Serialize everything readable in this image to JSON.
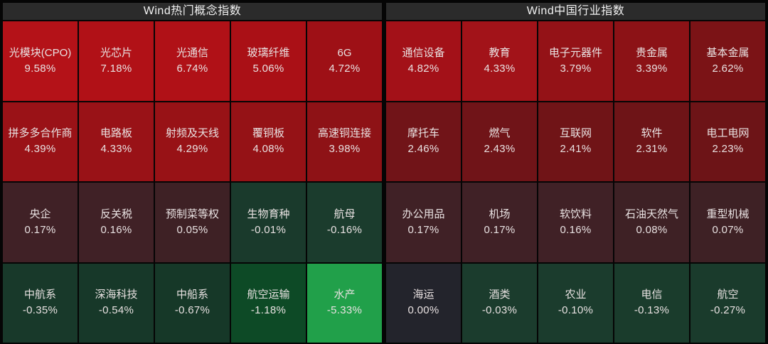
{
  "colors": {
    "page_background": "#050505",
    "header_background": "#2b2b2b",
    "header_text": "#f2f2f2",
    "tile_text": "#e9e2e2",
    "gain_strong": "#b41218",
    "loss_strong": "#21a04a",
    "flat": "#23242c"
  },
  "panels": [
    {
      "title": "Wind热门概念指数",
      "tiles": [
        {
          "name": "光模块(CPO)",
          "change": "9.58%",
          "color": "#b41218"
        },
        {
          "name": "光芯片",
          "change": "7.18%",
          "color": "#b11117"
        },
        {
          "name": "光通信",
          "change": "6.74%",
          "color": "#b01117"
        },
        {
          "name": "玻璃纤维",
          "change": "5.06%",
          "color": "#aa1016"
        },
        {
          "name": "6G",
          "change": "4.72%",
          "color": "#9e1016"
        },
        {
          "name": "拼多多合作商",
          "change": "4.39%",
          "color": "#9a1217"
        },
        {
          "name": "电路板",
          "change": "4.33%",
          "color": "#991217"
        },
        {
          "name": "射频及天线",
          "change": "4.29%",
          "color": "#981216"
        },
        {
          "name": "覆铜板",
          "change": "4.08%",
          "color": "#951216"
        },
        {
          "name": "高速铜连接",
          "change": "3.98%",
          "color": "#8e1216"
        },
        {
          "name": "央企",
          "change": "0.17%",
          "color": "#402126"
        },
        {
          "name": "反关税",
          "change": "0.16%",
          "color": "#402126"
        },
        {
          "name": "预制菜等权",
          "change": "0.05%",
          "color": "#3e2125"
        },
        {
          "name": "生物育种",
          "change": "-0.01%",
          "color": "#1a3a2c"
        },
        {
          "name": "航母",
          "change": "-0.16%",
          "color": "#1b3c2d"
        },
        {
          "name": "中航系",
          "change": "-0.35%",
          "color": "#18392a"
        },
        {
          "name": "深海科技",
          "change": "-0.54%",
          "color": "#173829"
        },
        {
          "name": "中船系",
          "change": "-0.67%",
          "color": "#163828"
        },
        {
          "name": "航空运输",
          "change": "-1.18%",
          "color": "#0d4a26"
        },
        {
          "name": "水产",
          "change": "-5.33%",
          "color": "#21a04a"
        }
      ]
    },
    {
      "title": "Wind中国行业指数",
      "tiles": [
        {
          "name": "通信设备",
          "change": "4.82%",
          "color": "#a31118"
        },
        {
          "name": "教育",
          "change": "4.33%",
          "color": "#a21319"
        },
        {
          "name": "电子元器件",
          "change": "3.79%",
          "color": "#941217"
        },
        {
          "name": "贵金属",
          "change": "3.39%",
          "color": "#8c1216"
        },
        {
          "name": "基本金属",
          "change": "2.62%",
          "color": "#7b1316"
        },
        {
          "name": "摩托车",
          "change": "2.46%",
          "color": "#711418"
        },
        {
          "name": "燃气",
          "change": "2.43%",
          "color": "#701418"
        },
        {
          "name": "互联网",
          "change": "2.41%",
          "color": "#701417"
        },
        {
          "name": "软件",
          "change": "2.31%",
          "color": "#6e1417"
        },
        {
          "name": "电工电网",
          "change": "2.23%",
          "color": "#6d1417"
        },
        {
          "name": "办公用品",
          "change": "0.17%",
          "color": "#402126"
        },
        {
          "name": "机场",
          "change": "0.17%",
          "color": "#402126"
        },
        {
          "name": "软饮料",
          "change": "0.16%",
          "color": "#402126"
        },
        {
          "name": "石油天然气",
          "change": "0.08%",
          "color": "#3e2125"
        },
        {
          "name": "重型机械",
          "change": "0.07%",
          "color": "#3e2125"
        },
        {
          "name": "海运",
          "change": "0.00%",
          "color": "#23242c"
        },
        {
          "name": "酒类",
          "change": "-0.03%",
          "color": "#1b3c2d"
        },
        {
          "name": "农业",
          "change": "-0.10%",
          "color": "#1b3c2d"
        },
        {
          "name": "电信",
          "change": "-0.13%",
          "color": "#1a3c2c"
        },
        {
          "name": "航空",
          "change": "-0.27%",
          "color": "#1a3b2c"
        }
      ]
    }
  ],
  "chart_data": [
    {
      "type": "heatmap",
      "title": "Wind热门概念指数",
      "categories": [
        "光模块(CPO)",
        "光芯片",
        "光通信",
        "玻璃纤维",
        "6G",
        "拼多多合作商",
        "电路板",
        "射频及天线",
        "覆铜板",
        "高速铜连接",
        "央企",
        "反关税",
        "预制菜等权",
        "生物育种",
        "航母",
        "中航系",
        "深海科技",
        "中船系",
        "航空运输",
        "水产"
      ],
      "values": [
        9.58,
        7.18,
        6.74,
        5.06,
        4.72,
        4.39,
        4.33,
        4.29,
        4.08,
        3.98,
        0.17,
        0.16,
        0.05,
        -0.01,
        -0.16,
        -0.35,
        -0.54,
        -0.67,
        -1.18,
        -5.33
      ],
      "unit": "%",
      "grid": "5 columns x 4 rows, sorted descending",
      "legend_position": "none",
      "color_rule": "red intensity = gain magnitude, green intensity = loss magnitude, dark slate = flat"
    },
    {
      "type": "heatmap",
      "title": "Wind中国行业指数",
      "categories": [
        "通信设备",
        "教育",
        "电子元器件",
        "贵金属",
        "基本金属",
        "摩托车",
        "燃气",
        "互联网",
        "软件",
        "电工电网",
        "办公用品",
        "机场",
        "软饮料",
        "石油天然气",
        "重型机械",
        "海运",
        "酒类",
        "农业",
        "电信",
        "航空"
      ],
      "values": [
        4.82,
        4.33,
        3.79,
        3.39,
        2.62,
        2.46,
        2.43,
        2.41,
        2.31,
        2.23,
        0.17,
        0.17,
        0.16,
        0.08,
        0.07,
        0.0,
        -0.03,
        -0.1,
        -0.13,
        -0.27
      ],
      "unit": "%",
      "grid": "5 columns x 4 rows, sorted descending",
      "legend_position": "none",
      "color_rule": "red intensity = gain magnitude, green intensity = loss magnitude, dark slate = flat"
    }
  ]
}
